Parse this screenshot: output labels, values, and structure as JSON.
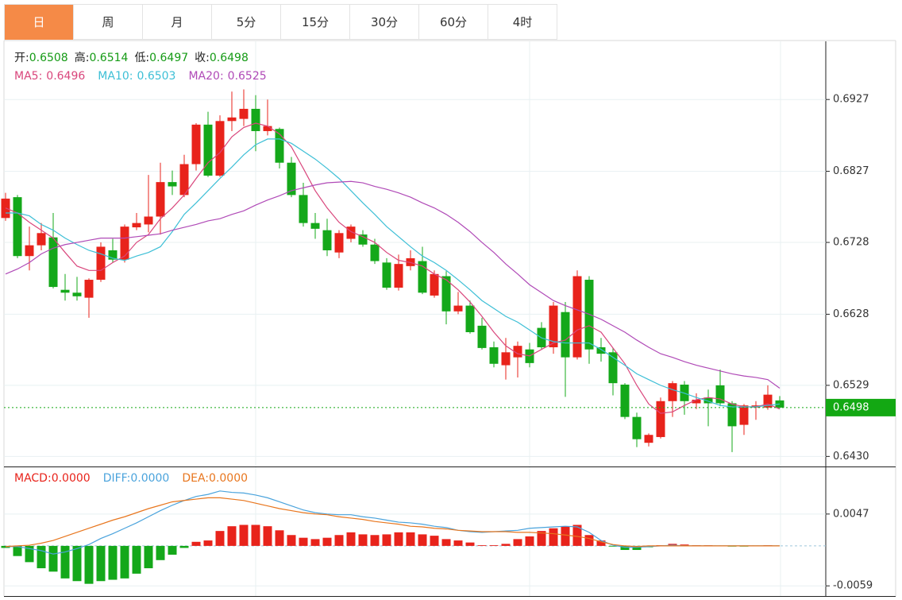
{
  "tabs": [
    "日",
    "周",
    "月",
    "5分",
    "15分",
    "30分",
    "60分",
    "4时"
  ],
  "active_tab": 0,
  "chart_data": [
    {
      "type": "candlestick",
      "header": [
        {
          "label": "开:",
          "value": "0.6508"
        },
        {
          "label": "高:",
          "value": "0.6514"
        },
        {
          "label": "低:",
          "value": "0.6497"
        },
        {
          "label": "收:",
          "value": "0.6498"
        }
      ],
      "header_value_color": "#149a14",
      "up_color": "#e8231b",
      "down_color": "#14a81a",
      "open": [
        0.6762,
        0.6791,
        0.6709,
        0.6724,
        0.6735,
        0.6662,
        0.6658,
        0.6651,
        0.6676,
        0.6717,
        0.6704,
        0.6749,
        0.6753,
        0.6764,
        0.6812,
        0.6794,
        0.6837,
        0.6892,
        0.6821,
        0.6897,
        0.69,
        0.6914,
        0.6883,
        0.6886,
        0.6839,
        0.6794,
        0.6755,
        0.6745,
        0.6714,
        0.6733,
        0.6739,
        0.6725,
        0.67,
        0.6665,
        0.6695,
        0.6702,
        0.6654,
        0.6681,
        0.6632,
        0.664,
        0.6612,
        0.6582,
        0.6557,
        0.6568,
        0.6579,
        0.6609,
        0.6582,
        0.6631,
        0.6568,
        0.6676,
        0.6582,
        0.6575,
        0.653,
        0.6485,
        0.6449,
        0.6457,
        0.6507,
        0.653,
        0.6504,
        0.6512,
        0.6529,
        0.6504,
        0.6474,
        0.6498,
        0.6498,
        0.6508
      ],
      "high": [
        0.6797,
        0.6794,
        0.675,
        0.6755,
        0.6769,
        0.6684,
        0.668,
        0.6678,
        0.6728,
        0.6733,
        0.6753,
        0.6769,
        0.6822,
        0.6839,
        0.6828,
        0.685,
        0.6894,
        0.691,
        0.6905,
        0.6938,
        0.6941,
        0.6933,
        0.6927,
        0.6888,
        0.6847,
        0.6811,
        0.6769,
        0.6761,
        0.6745,
        0.6753,
        0.6745,
        0.6733,
        0.6706,
        0.6711,
        0.6717,
        0.6722,
        0.6689,
        0.6688,
        0.6659,
        0.6647,
        0.6623,
        0.659,
        0.6595,
        0.659,
        0.6588,
        0.6617,
        0.6645,
        0.6645,
        0.6689,
        0.6681,
        0.6595,
        0.6581,
        0.6532,
        0.6491,
        0.6462,
        0.6512,
        0.6535,
        0.6535,
        0.6518,
        0.6523,
        0.6551,
        0.6507,
        0.6503,
        0.6507,
        0.6529,
        0.6514
      ],
      "low": [
        0.6758,
        0.6706,
        0.6689,
        0.6717,
        0.6664,
        0.6647,
        0.6647,
        0.6623,
        0.6673,
        0.67,
        0.67,
        0.6745,
        0.6742,
        0.6739,
        0.6794,
        0.6791,
        0.6828,
        0.6819,
        0.6819,
        0.6883,
        0.689,
        0.6855,
        0.6877,
        0.6831,
        0.6791,
        0.675,
        0.6733,
        0.6709,
        0.6706,
        0.6728,
        0.6722,
        0.6698,
        0.6662,
        0.6661,
        0.6689,
        0.6656,
        0.6651,
        0.6614,
        0.6628,
        0.6601,
        0.6579,
        0.6554,
        0.6537,
        0.654,
        0.6554,
        0.6579,
        0.6573,
        0.6513,
        0.6565,
        0.6559,
        0.6562,
        0.6515,
        0.6482,
        0.6443,
        0.6444,
        0.6455,
        0.6485,
        0.6488,
        0.6496,
        0.6472,
        0.65,
        0.6436,
        0.646,
        0.6481,
        0.6495,
        0.6497
      ],
      "close": [
        0.6789,
        0.6709,
        0.6724,
        0.6741,
        0.6666,
        0.6658,
        0.6653,
        0.6676,
        0.6722,
        0.6704,
        0.675,
        0.6755,
        0.6764,
        0.6812,
        0.6806,
        0.6837,
        0.6892,
        0.6821,
        0.6897,
        0.6902,
        0.6914,
        0.6883,
        0.689,
        0.6839,
        0.6794,
        0.6755,
        0.6747,
        0.6717,
        0.6741,
        0.675,
        0.6725,
        0.6702,
        0.6665,
        0.6698,
        0.6706,
        0.6658,
        0.6684,
        0.6632,
        0.664,
        0.6603,
        0.6581,
        0.6559,
        0.6575,
        0.6584,
        0.656,
        0.6582,
        0.664,
        0.6568,
        0.6681,
        0.6579,
        0.6573,
        0.6532,
        0.6485,
        0.6454,
        0.646,
        0.6507,
        0.6532,
        0.6507,
        0.6509,
        0.6504,
        0.6504,
        0.6472,
        0.6501,
        0.6501,
        0.6516,
        0.6498
      ],
      "series": [
        {
          "name": "MA5:",
          "value_label": "0.6496",
          "color": "#d9467c",
          "values": [
            0.6776,
            0.6769,
            0.6756,
            0.6745,
            0.6734,
            0.6714,
            0.6695,
            0.6689,
            0.6689,
            0.67,
            0.6709,
            0.6728,
            0.6739,
            0.6761,
            0.6776,
            0.6794,
            0.6817,
            0.6839,
            0.6853,
            0.6875,
            0.6888,
            0.6894,
            0.689,
            0.6879,
            0.6861,
            0.6831,
            0.68,
            0.6776,
            0.6756,
            0.6743,
            0.6736,
            0.6728,
            0.6714,
            0.6703,
            0.67,
            0.6695,
            0.6684,
            0.6676,
            0.6662,
            0.6645,
            0.6625,
            0.6603,
            0.6584,
            0.6573,
            0.657,
            0.6579,
            0.6588,
            0.6592,
            0.6606,
            0.6612,
            0.6603,
            0.6581,
            0.6559,
            0.6529,
            0.6503,
            0.649,
            0.6492,
            0.6501,
            0.6509,
            0.6512,
            0.651,
            0.6503,
            0.6499,
            0.6499,
            0.6503,
            0.6496
          ]
        },
        {
          "name": "MA10:",
          "value_label": "0.6503",
          "color": "#3dbfd6",
          "values": [
            0.6769,
            0.6769,
            0.6765,
            0.6753,
            0.6745,
            0.6734,
            0.6725,
            0.6717,
            0.6712,
            0.6706,
            0.6703,
            0.6709,
            0.6714,
            0.6722,
            0.6743,
            0.6767,
            0.6783,
            0.68,
            0.6817,
            0.6833,
            0.685,
            0.6864,
            0.6872,
            0.6872,
            0.6866,
            0.6855,
            0.6844,
            0.6831,
            0.6817,
            0.68,
            0.6783,
            0.6767,
            0.675,
            0.6736,
            0.6722,
            0.6709,
            0.67,
            0.6689,
            0.6676,
            0.6662,
            0.6647,
            0.6636,
            0.6625,
            0.6617,
            0.6606,
            0.6595,
            0.659,
            0.6588,
            0.6588,
            0.6588,
            0.6579,
            0.6568,
            0.6557,
            0.6545,
            0.6537,
            0.6529,
            0.6523,
            0.6518,
            0.6512,
            0.6507,
            0.6501,
            0.6499,
            0.6499,
            0.6499,
            0.6501,
            0.6503
          ]
        },
        {
          "name": "MA20:",
          "value_label": "0.6525",
          "color": "#b04ab7",
          "values": [
            0.6684,
            0.6691,
            0.67,
            0.6712,
            0.672,
            0.6725,
            0.6728,
            0.6731,
            0.6734,
            0.6734,
            0.6734,
            0.6736,
            0.6738,
            0.674,
            0.6745,
            0.6749,
            0.6753,
            0.6758,
            0.6761,
            0.6767,
            0.6772,
            0.678,
            0.6787,
            0.6793,
            0.68,
            0.6804,
            0.6808,
            0.6811,
            0.6812,
            0.6813,
            0.6811,
            0.6806,
            0.6802,
            0.6797,
            0.6791,
            0.6783,
            0.6776,
            0.6767,
            0.6756,
            0.6743,
            0.6728,
            0.6714,
            0.6698,
            0.6684,
            0.6669,
            0.6658,
            0.6647,
            0.664,
            0.6634,
            0.6628,
            0.6621,
            0.6612,
            0.6603,
            0.6592,
            0.6582,
            0.6573,
            0.6568,
            0.6562,
            0.6557,
            0.6553,
            0.6549,
            0.6545,
            0.6542,
            0.654,
            0.6537,
            0.6525
          ]
        }
      ],
      "last_price": 0.6498,
      "last_price_color": "#13a813",
      "ylim": [
        0.6416,
        0.7008
      ],
      "yticks": [
        0.6927,
        0.6827,
        0.6728,
        0.6628,
        0.6529,
        {
          "value": 0.643,
          "label": "0.6430"
        }
      ],
      "grid": true
    },
    {
      "type": "macd",
      "up_color": "#e8231b",
      "down_color": "#14a81a",
      "series": [
        {
          "name": "MACD:",
          "value_label": "0.0000",
          "color": "#e8231b",
          "kind": "bar",
          "values": [
            -0.0003,
            -0.0015,
            -0.0024,
            -0.0033,
            -0.0038,
            -0.0048,
            -0.0052,
            -0.0056,
            -0.0052,
            -0.005,
            -0.0048,
            -0.0041,
            -0.0033,
            -0.0021,
            -0.0013,
            -0.0003,
            0.0006,
            0.0008,
            0.0022,
            0.0029,
            0.0031,
            0.0031,
            0.0029,
            0.0023,
            0.0016,
            0.0012,
            0.001,
            0.0012,
            0.0016,
            0.002,
            0.0017,
            0.0016,
            0.0017,
            0.002,
            0.002,
            0.0017,
            0.0015,
            0.001,
            0.0008,
            0.0005,
            0.0001,
            0.0001,
            0.0003,
            0.001,
            0.0014,
            0.0022,
            0.0026,
            0.0029,
            0.0031,
            0.0016,
            0.0008,
            -0.0001,
            -0.0006,
            -0.0006,
            -0.0002,
            0.0001,
            0.0003,
            0.0002,
            0.0001,
            0.0001,
            0,
            -0.0001,
            -0.0001,
            0,
            0.0001,
            0
          ]
        },
        {
          "name": "DIFF:",
          "value_label": "0.0000",
          "color": "#4aa3dc",
          "kind": "line",
          "values": [
            -0.0001,
            -0.0001,
            -0.0004,
            -0.0007,
            -0.0012,
            -0.0009,
            -0.0004,
            0.0002,
            0.0011,
            0.0018,
            0.0026,
            0.0034,
            0.0043,
            0.0052,
            0.006,
            0.0067,
            0.0073,
            0.0076,
            0.0081,
            0.0079,
            0.0078,
            0.0075,
            0.0071,
            0.0065,
            0.0059,
            0.0053,
            0.0049,
            0.0047,
            0.0046,
            0.0046,
            0.0043,
            0.0041,
            0.0038,
            0.0035,
            0.0034,
            0.0032,
            0.0029,
            0.0027,
            0.0023,
            0.0021,
            0.002,
            0.0021,
            0.0022,
            0.0023,
            0.0026,
            0.0027,
            0.0028,
            0.0029,
            0.0028,
            0.002,
            0.0008,
            0.0001,
            -0.0002,
            -0.0002,
            -0.0001,
            0,
            0.0001,
            0,
            0,
            0,
            0,
            0,
            0,
            0,
            0,
            0
          ]
        },
        {
          "name": "DEA:",
          "value_label": "0.0000",
          "color": "#e8761e",
          "kind": "line",
          "values": [
            -0.0001,
            0,
            0.0001,
            0.0004,
            0.0008,
            0.0014,
            0.002,
            0.0026,
            0.0032,
            0.0038,
            0.0043,
            0.0049,
            0.0055,
            0.006,
            0.0065,
            0.0067,
            0.0069,
            0.0071,
            0.0071,
            0.0069,
            0.0067,
            0.0063,
            0.0059,
            0.0055,
            0.0052,
            0.0049,
            0.0047,
            0.0046,
            0.0043,
            0.0041,
            0.0039,
            0.0036,
            0.0034,
            0.0032,
            0.0029,
            0.0028,
            0.0026,
            0.0025,
            0.0023,
            0.0022,
            0.0021,
            0.0021,
            0.0021,
            0.002,
            0.002,
            0.0019,
            0.0018,
            0.0016,
            0.0014,
            0.0011,
            0.0006,
            0.0002,
            0,
            -0.0001,
            0,
            0,
            0,
            0,
            0,
            0,
            0,
            0,
            0,
            0,
            0,
            0
          ]
        }
      ],
      "ylim": [
        -0.0074,
        0.0116
      ],
      "yticks": [
        0.0047,
        -0.0059
      ],
      "grid": true
    }
  ]
}
